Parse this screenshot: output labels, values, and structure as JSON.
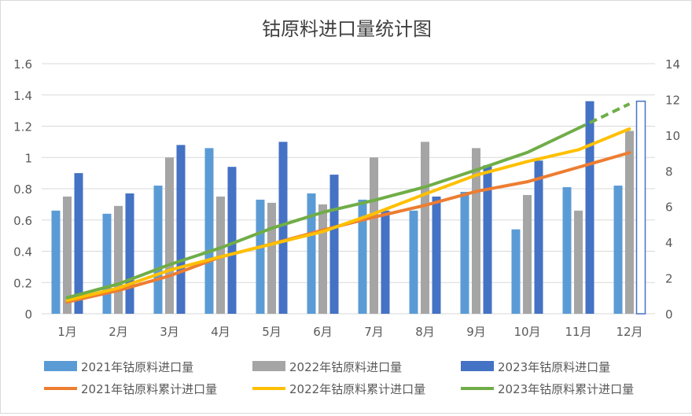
{
  "chart_data": {
    "type": "bar+line",
    "title": "钴原料进口量统计图",
    "categories": [
      "1月",
      "2月",
      "3月",
      "4月",
      "5月",
      "6月",
      "7月",
      "8月",
      "9月",
      "10月",
      "11月",
      "12月"
    ],
    "left_axis": {
      "range": [
        0,
        1.6
      ],
      "ticks": [
        "0",
        "0.2",
        "0.4",
        "0.6",
        "0.8",
        "1",
        "1.2",
        "1.4",
        "1.6"
      ]
    },
    "right_axis": {
      "range": [
        0,
        14
      ],
      "ticks": [
        "0",
        "2",
        "4",
        "6",
        "8",
        "10",
        "12",
        "14"
      ]
    },
    "grid": true,
    "legend_placement": "bottom",
    "bar_series": [
      {
        "name": "2021年钴原料进口量",
        "color": "#5b9bd5",
        "values": [
          0.66,
          0.64,
          0.82,
          1.06,
          0.73,
          0.77,
          0.73,
          0.66,
          0.78,
          0.54,
          0.81,
          0.82
        ]
      },
      {
        "name": "2022年钴原料进口量",
        "color": "#a5a5a5",
        "values": [
          0.75,
          0.69,
          1.0,
          0.75,
          0.71,
          0.7,
          1.0,
          1.1,
          1.06,
          0.76,
          0.66,
          1.17
        ]
      },
      {
        "name": "2023年钴原料进口量",
        "color": "#4472c4",
        "values": [
          0.9,
          0.77,
          1.08,
          0.94,
          1.1,
          0.89,
          0.66,
          0.75,
          0.95,
          0.98,
          1.36,
          1.36
        ],
        "outlined_last": true
      }
    ],
    "line_series": [
      {
        "name": "2021年钴原料累计进口量",
        "color": "#ed7d31",
        "values": [
          0.66,
          1.3,
          2.12,
          3.18,
          3.91,
          4.68,
          5.41,
          6.07,
          6.85,
          7.39,
          8.2,
          9.02
        ]
      },
      {
        "name": "2022年钴原料累计进口量",
        "color": "#ffc000",
        "values": [
          0.75,
          1.44,
          2.44,
          3.19,
          3.9,
          4.6,
          5.6,
          6.7,
          7.76,
          8.52,
          9.18,
          10.35
        ]
      },
      {
        "name": "2023年钴原料累计进口量",
        "color": "#70ad47",
        "values": [
          0.9,
          1.67,
          2.75,
          3.69,
          4.79,
          5.68,
          6.35,
          7.1,
          8.05,
          9.03,
          10.39,
          11.75
        ],
        "dashed_last": true
      }
    ]
  }
}
